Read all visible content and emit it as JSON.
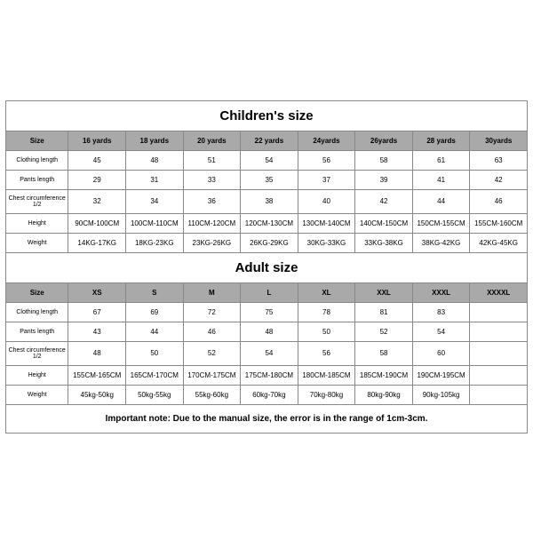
{
  "children": {
    "title": "Children's size",
    "columns": [
      "Size",
      "16 yards",
      "18 yards",
      "20 yards",
      "22 yards",
      "24yards",
      "26yards",
      "28 yards",
      "30yards"
    ],
    "rows": [
      {
        "label": "Clothing length",
        "cells": [
          "45",
          "48",
          "51",
          "54",
          "56",
          "58",
          "61",
          "63"
        ]
      },
      {
        "label": "Pants length",
        "cells": [
          "29",
          "31",
          "33",
          "35",
          "37",
          "39",
          "41",
          "42"
        ]
      },
      {
        "label": "Chest circumference 1/2",
        "cells": [
          "32",
          "34",
          "36",
          "38",
          "40",
          "42",
          "44",
          "46"
        ]
      },
      {
        "label": "Height",
        "cells": [
          "90CM-100CM",
          "100CM-110CM",
          "110CM-120CM",
          "120CM-130CM",
          "130CM-140CM",
          "140CM-150CM",
          "150CM-155CM",
          "155CM-160CM"
        ]
      },
      {
        "label": "Weight",
        "cells": [
          "14KG-17KG",
          "18KG-23KG",
          "23KG-26KG",
          "26KG-29KG",
          "30KG-33KG",
          "33KG-38KG",
          "38KG-42KG",
          "42KG-45KG"
        ]
      }
    ]
  },
  "adult": {
    "title": "Adult size",
    "columns": [
      "Size",
      "XS",
      "S",
      "M",
      "L",
      "XL",
      "XXL",
      "XXXL",
      "XXXXL"
    ],
    "rows": [
      {
        "label": "Clothing length",
        "cells": [
          "67",
          "69",
          "72",
          "75",
          "78",
          "81",
          "83",
          ""
        ]
      },
      {
        "label": "Pants length",
        "cells": [
          "43",
          "44",
          "46",
          "48",
          "50",
          "52",
          "54",
          ""
        ]
      },
      {
        "label": "Chest circumference 1/2",
        "cells": [
          "48",
          "50",
          "52",
          "54",
          "56",
          "58",
          "60",
          ""
        ]
      },
      {
        "label": "Height",
        "cells": [
          "155CM-165CM",
          "165CM-170CM",
          "170CM-175CM",
          "175CM-180CM",
          "180CM-185CM",
          "185CM-190CM",
          "190CM-195CM",
          ""
        ]
      },
      {
        "label": "Weight",
        "cells": [
          "45kg-50kg",
          "50kg-55kg",
          "55kg-60kg",
          "60kg-70kg",
          "70kg-80kg",
          "80kg-90kg",
          "90kg-105kg",
          ""
        ]
      }
    ]
  },
  "note": "Important note: Due to the manual size, the error is in the range of 1cm-3cm.",
  "style": {
    "header_bg": "#a9a9a9",
    "border_color": "#888888",
    "title_fontsize": 15,
    "cell_fontsize": 8,
    "note_fontsize": 10
  }
}
